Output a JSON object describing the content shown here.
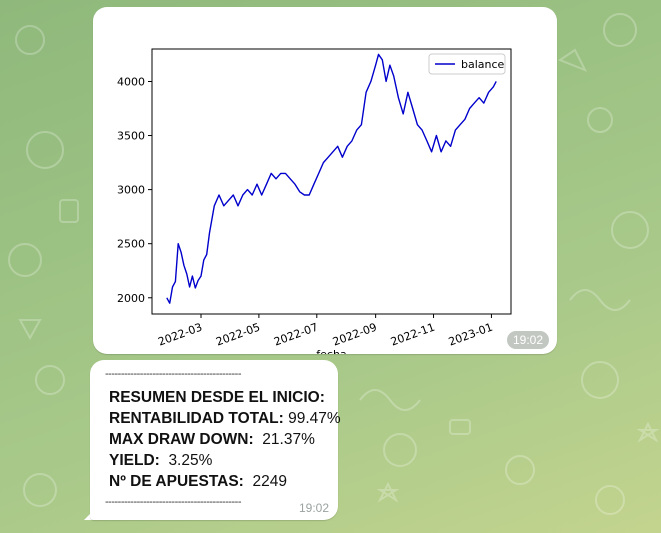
{
  "messages": {
    "image": {
      "time": "19:02"
    },
    "text": {
      "separator_top": "-------------------------------------------",
      "separator_bottom": "-------------------------------------------",
      "lines": [
        {
          "label": "RESUMEN DESDE EL INICIO:",
          "value": ""
        },
        {
          "label": "RENTABILIDAD TOTAL:",
          "value": "99.47%"
        },
        {
          "label": "MAX DRAW DOWN:",
          "value": "21.37%"
        },
        {
          "label": "YIELD:",
          "value": "3.25%"
        },
        {
          "label": "Nº DE APUESTAS:",
          "value": "2249"
        }
      ],
      "time": "19:02"
    }
  },
  "chart_data": {
    "type": "line",
    "xlabel": "fecha",
    "ylabel": "",
    "legend": "top-right",
    "grid": false,
    "line_color": "#0000cc",
    "ylim": [
      1850,
      4300
    ],
    "yticks": [
      2000,
      2500,
      3000,
      3500,
      4000
    ],
    "xticks": [
      "2022-03",
      "2022-05",
      "2022-07",
      "2022-09",
      "2022-11",
      "2023-01"
    ],
    "series": [
      {
        "name": "balance",
        "x": [
          "2022-01-24",
          "2022-01-27",
          "2022-01-30",
          "2022-02-02",
          "2022-02-05",
          "2022-02-08",
          "2022-02-11",
          "2022-02-14",
          "2022-02-17",
          "2022-02-20",
          "2022-02-23",
          "2022-02-26",
          "2022-03-01",
          "2022-03-04",
          "2022-03-07",
          "2022-03-10",
          "2022-03-15",
          "2022-03-20",
          "2022-03-25",
          "2022-03-30",
          "2022-04-04",
          "2022-04-09",
          "2022-04-14",
          "2022-04-19",
          "2022-04-24",
          "2022-04-29",
          "2022-05-04",
          "2022-05-09",
          "2022-05-14",
          "2022-05-19",
          "2022-05-24",
          "2022-05-29",
          "2022-06-03",
          "2022-06-08",
          "2022-06-13",
          "2022-06-18",
          "2022-06-23",
          "2022-06-28",
          "2022-07-03",
          "2022-07-08",
          "2022-07-13",
          "2022-07-18",
          "2022-07-23",
          "2022-07-28",
          "2022-08-02",
          "2022-08-07",
          "2022-08-12",
          "2022-08-17",
          "2022-08-22",
          "2022-08-27",
          "2022-09-01",
          "2022-09-04",
          "2022-09-08",
          "2022-09-12",
          "2022-09-16",
          "2022-09-20",
          "2022-09-25",
          "2022-09-30",
          "2022-10-05",
          "2022-10-10",
          "2022-10-15",
          "2022-10-20",
          "2022-10-25",
          "2022-10-30",
          "2022-11-04",
          "2022-11-09",
          "2022-11-14",
          "2022-11-19",
          "2022-11-24",
          "2022-11-29",
          "2022-12-04",
          "2022-12-09",
          "2022-12-14",
          "2022-12-19",
          "2022-12-24",
          "2022-12-29",
          "2023-01-03",
          "2023-01-06"
        ],
        "values": [
          2000,
          1950,
          2100,
          2150,
          2500,
          2420,
          2300,
          2220,
          2100,
          2200,
          2090,
          2160,
          2200,
          2350,
          2400,
          2600,
          2850,
          2950,
          2850,
          2900,
          2950,
          2850,
          2950,
          3000,
          2950,
          3050,
          2950,
          3050,
          3150,
          3100,
          3150,
          3150,
          3100,
          3050,
          2980,
          2950,
          2950,
          3050,
          3150,
          3250,
          3300,
          3350,
          3400,
          3300,
          3400,
          3450,
          3550,
          3600,
          3900,
          4000,
          4150,
          4250,
          4200,
          4000,
          4150,
          4050,
          3850,
          3700,
          3900,
          3750,
          3600,
          3550,
          3450,
          3350,
          3500,
          3350,
          3450,
          3400,
          3550,
          3600,
          3650,
          3750,
          3800,
          3850,
          3800,
          3900,
          3950,
          4000
        ]
      }
    ]
  }
}
